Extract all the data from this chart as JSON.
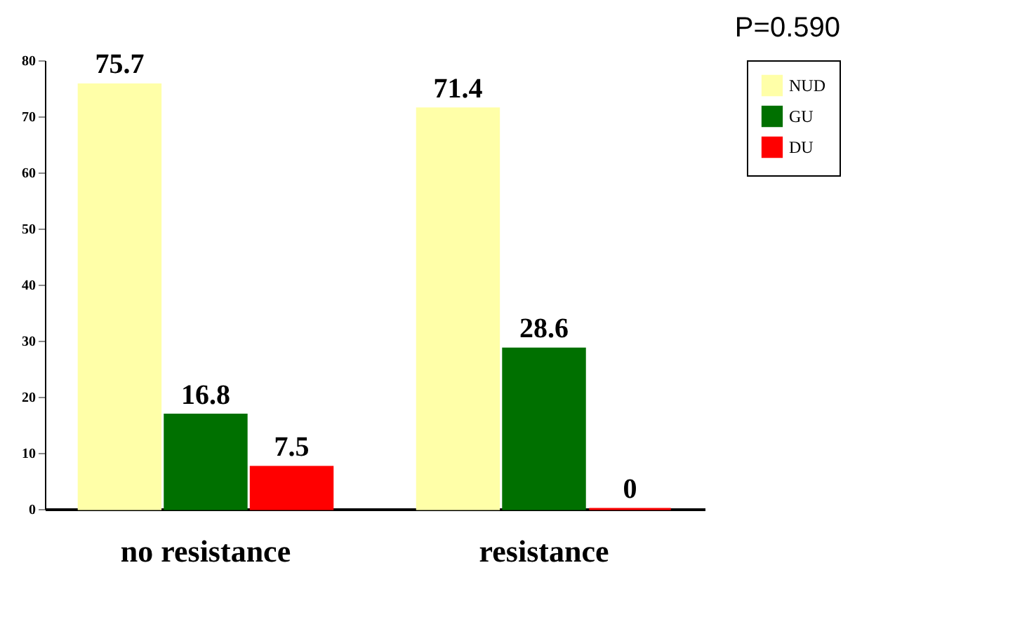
{
  "chart_data": {
    "type": "bar",
    "categories": [
      "no resistance",
      "resistance"
    ],
    "series": [
      {
        "name": "NUD",
        "color": "#ffffa8",
        "values": [
          75.7,
          71.4
        ]
      },
      {
        "name": "GU",
        "color": "#007000",
        "values": [
          16.8,
          28.6
        ]
      },
      {
        "name": "DU",
        "color": "#ff0000",
        "values": [
          7.5,
          0
        ]
      }
    ],
    "ylim": [
      0,
      80
    ],
    "yticks": [
      0,
      10,
      20,
      30,
      40,
      50,
      60,
      70,
      80
    ],
    "data_labels": true,
    "legend": "right",
    "grid": false,
    "annotations": [
      "P=0.590"
    ]
  }
}
